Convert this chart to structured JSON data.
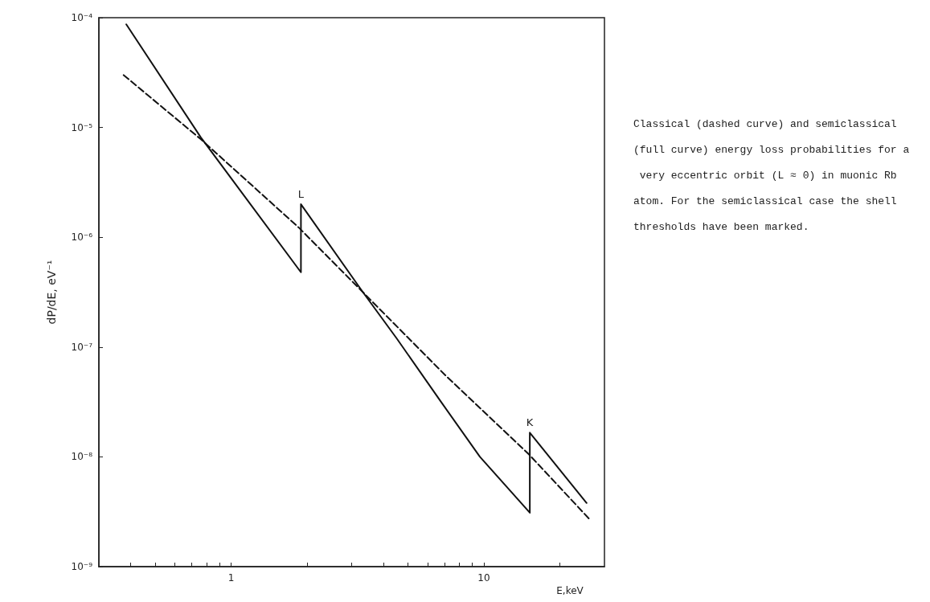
{
  "chart_data": {
    "type": "line",
    "xlabel": "E,keV",
    "ylabel": "dP/dE, eV⁻¹",
    "log": "xy",
    "marker": "none",
    "xlim": [
      0.3,
      30
    ],
    "ylim": [
      1e-09,
      0.0001
    ],
    "xticks": [
      {
        "value": 0.4,
        "label": null
      },
      {
        "value": 0.5,
        "label": null
      },
      {
        "value": 0.6,
        "label": null
      },
      {
        "value": 0.7,
        "label": null
      },
      {
        "value": 0.8,
        "label": null
      },
      {
        "value": 0.9,
        "label": null
      },
      1,
      {
        "value": 2,
        "label": null
      },
      {
        "value": 3,
        "label": null
      },
      {
        "value": 4,
        "label": null
      },
      {
        "value": 5,
        "label": null
      },
      {
        "value": 6,
        "label": null
      },
      {
        "value": 7,
        "label": null
      },
      {
        "value": 8,
        "label": null
      },
      {
        "value": 9,
        "label": null
      },
      10,
      {
        "value": 20,
        "label": null
      }
    ],
    "yticks": [
      {
        "value": 1e-09,
        "label": "10⁻⁹"
      },
      {
        "value": 1e-08,
        "label": "10⁻⁸"
      },
      {
        "value": 1e-07,
        "label": "10⁻⁷"
      },
      {
        "value": 1e-06,
        "label": "10⁻⁶"
      },
      {
        "value": 1e-05,
        "label": "10⁻⁵"
      },
      {
        "value": 0.0001,
        "label": "10⁻⁴"
      }
    ],
    "series": [
      {
        "color": "#111111",
        "line_style": "solid",
        "x": [
          0.385,
          0.76,
          1.89,
          1.89,
          3.31,
          4.52,
          6.75,
          9.65,
          15.2,
          15.2,
          25.5
        ],
        "values": [
          8.7e-05,
          8.1e-06,
          4.8e-07,
          2e-06,
          3.2e-07,
          1.2e-07,
          3.2e-08,
          1e-08,
          3.1e-09,
          1.66e-08,
          3.8e-09
        ]
      },
      {
        "color": "#111111",
        "line_style": "dashed",
        "x": [
          0.376,
          0.76,
          1.85,
          7.06,
          15.1,
          26
        ],
        "values": [
          3e-05,
          7.8e-06,
          1.23e-06,
          5.5e-08,
          1.05e-08,
          2.75e-09
        ]
      }
    ],
    "annotations": [
      {
        "text": "L",
        "x": 1.89,
        "y": 2e-06
      },
      {
        "text": "K",
        "x": 15.2,
        "y": 1.66e-08
      },
      "Classical (dashed curve) and semiclassical (full curve) energy loss probabilities for a very eccentric orbit (L ≈ 0) in muonic Rb atom. For the semiclassical case the shell thresholds have been marked."
    ]
  }
}
